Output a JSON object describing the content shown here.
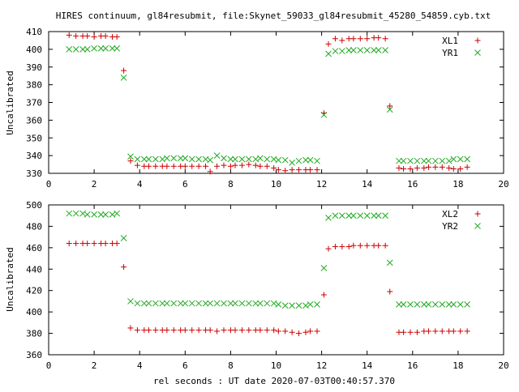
{
  "title": "HIRES continuum, gl84resubmit, file:Skynet_59033_gl84resubmit_45280_54859.cyb.txt",
  "xlabel": "rel seconds : UT date 2020-07-03T00:40:57.370",
  "colors": {
    "plus_series": "#cc0000",
    "cross_series": "#22aa22"
  },
  "chart_data": [
    {
      "type": "scatter",
      "title": "",
      "xlabel": "",
      "ylabel": "Uncalibrated",
      "xlim": [
        0,
        20
      ],
      "ylim": [
        330,
        410
      ],
      "xticks": [
        0,
        2,
        4,
        6,
        8,
        10,
        12,
        14,
        16,
        18,
        20
      ],
      "yticks": [
        330,
        340,
        350,
        360,
        370,
        380,
        390,
        400,
        410
      ],
      "grid": false,
      "legend": "top-right",
      "series": [
        {
          "name": "XL1",
          "marker": "plus",
          "color": "#cc0000",
          "x": [
            0.9,
            1.2,
            1.5,
            1.7,
            2.0,
            2.3,
            2.5,
            2.8,
            3.0,
            3.3,
            3.6,
            3.9,
            4.2,
            4.4,
            4.7,
            5.0,
            5.2,
            5.5,
            5.8,
            6.0,
            6.3,
            6.6,
            6.9,
            7.1,
            7.4,
            7.7,
            8.0,
            8.2,
            8.5,
            8.8,
            9.1,
            9.3,
            9.6,
            9.9,
            10.1,
            10.4,
            10.7,
            11.0,
            11.3,
            11.5,
            11.8,
            12.1,
            12.3,
            12.6,
            12.9,
            13.2,
            13.4,
            13.7,
            14.0,
            14.3,
            14.5,
            14.8,
            15.0,
            15.4,
            15.6,
            15.9,
            16.2,
            16.5,
            16.7,
            17.0,
            17.3,
            17.6,
            17.8,
            18.1,
            18.4
          ],
          "y": [
            408,
            407.5,
            407.5,
            407.5,
            407,
            407.5,
            407.5,
            407,
            407,
            388,
            337,
            334.5,
            334,
            334,
            334,
            334,
            334,
            334,
            334,
            334,
            334,
            334,
            334,
            331,
            334,
            334.5,
            334,
            334.5,
            334.5,
            335,
            334.5,
            334,
            334,
            333,
            332,
            331.5,
            332,
            332,
            332,
            332,
            332,
            364,
            403,
            406,
            405,
            406,
            406,
            406,
            406,
            406.5,
            406.5,
            406,
            368,
            333,
            332.5,
            332.5,
            333,
            333,
            333.5,
            333.5,
            333.5,
            333,
            332.5,
            332.5,
            333.5
          ]
        },
        {
          "name": "YR1",
          "marker": "cross",
          "color": "#22aa22",
          "x": [
            0.9,
            1.2,
            1.5,
            1.7,
            2.0,
            2.3,
            2.5,
            2.8,
            3.0,
            3.3,
            3.6,
            3.9,
            4.2,
            4.4,
            4.7,
            5.0,
            5.2,
            5.5,
            5.8,
            6.0,
            6.3,
            6.6,
            6.9,
            7.1,
            7.4,
            7.7,
            8.0,
            8.2,
            8.5,
            8.8,
            9.1,
            9.3,
            9.6,
            9.9,
            10.1,
            10.4,
            10.7,
            11.0,
            11.3,
            11.5,
            11.8,
            12.1,
            12.3,
            12.6,
            12.9,
            13.2,
            13.4,
            13.7,
            14.0,
            14.3,
            14.5,
            14.8,
            15.0,
            15.4,
            15.6,
            15.9,
            16.2,
            16.5,
            16.7,
            17.0,
            17.3,
            17.6,
            17.8,
            18.1,
            18.4
          ],
          "y": [
            400,
            400,
            400,
            400,
            400.5,
            400.5,
            400.5,
            400.5,
            400.5,
            384,
            339.5,
            338,
            338,
            338,
            338,
            338,
            338.5,
            338.5,
            338.5,
            338.5,
            338,
            338,
            338,
            337.5,
            340,
            338.5,
            338,
            338,
            338,
            338,
            338,
            338.5,
            338,
            338,
            337.5,
            337.5,
            336,
            337,
            337.5,
            337.5,
            337,
            363,
            397.5,
            399,
            399,
            399.5,
            399.5,
            399.5,
            399.5,
            399.5,
            399.5,
            399.5,
            366,
            337,
            337,
            337,
            337,
            337,
            337,
            337,
            337,
            337,
            338,
            338,
            338
          ]
        }
      ]
    },
    {
      "type": "scatter",
      "title": "",
      "xlabel": "rel seconds : UT date 2020-07-03T00:40:57.370",
      "ylabel": "Uncalibrated",
      "xlim": [
        0,
        20
      ],
      "ylim": [
        360,
        500
      ],
      "xticks": [
        0,
        2,
        4,
        6,
        8,
        10,
        12,
        14,
        16,
        18,
        20
      ],
      "yticks": [
        360,
        380,
        400,
        420,
        440,
        460,
        480,
        500
      ],
      "grid": false,
      "legend": "top-right",
      "series": [
        {
          "name": "XL2",
          "marker": "plus",
          "color": "#cc0000",
          "x": [
            0.9,
            1.2,
            1.5,
            1.7,
            2.0,
            2.3,
            2.5,
            2.8,
            3.0,
            3.3,
            3.6,
            3.9,
            4.2,
            4.4,
            4.7,
            5.0,
            5.2,
            5.5,
            5.8,
            6.0,
            6.3,
            6.6,
            6.9,
            7.1,
            7.4,
            7.7,
            8.0,
            8.2,
            8.5,
            8.8,
            9.1,
            9.3,
            9.6,
            9.9,
            10.1,
            10.4,
            10.7,
            11.0,
            11.3,
            11.5,
            11.8,
            12.1,
            12.3,
            12.6,
            12.9,
            13.2,
            13.4,
            13.7,
            14.0,
            14.3,
            14.5,
            14.8,
            15.0,
            15.4,
            15.6,
            15.9,
            16.2,
            16.5,
            16.7,
            17.0,
            17.3,
            17.6,
            17.8,
            18.1,
            18.4
          ],
          "y": [
            464,
            464,
            464,
            464,
            464,
            464,
            464,
            464,
            464,
            442,
            385,
            383,
            383,
            383,
            383,
            383,
            383,
            383,
            383,
            383,
            383,
            383,
            383,
            383,
            382,
            383,
            383,
            383,
            383,
            383,
            383,
            383,
            383,
            383,
            382,
            382,
            381,
            380,
            381,
            382,
            382,
            416,
            459,
            461,
            461,
            461,
            462,
            462,
            462,
            462,
            462,
            462,
            419,
            381,
            381,
            381,
            381,
            382,
            382,
            382,
            382,
            382,
            382,
            382,
            382
          ]
        },
        {
          "name": "YR2",
          "marker": "cross",
          "color": "#22aa22",
          "x": [
            0.9,
            1.2,
            1.5,
            1.7,
            2.0,
            2.3,
            2.5,
            2.8,
            3.0,
            3.3,
            3.6,
            3.9,
            4.2,
            4.4,
            4.7,
            5.0,
            5.2,
            5.5,
            5.8,
            6.0,
            6.3,
            6.6,
            6.9,
            7.1,
            7.4,
            7.7,
            8.0,
            8.2,
            8.5,
            8.8,
            9.1,
            9.3,
            9.6,
            9.9,
            10.1,
            10.4,
            10.7,
            11.0,
            11.3,
            11.5,
            11.8,
            12.1,
            12.3,
            12.6,
            12.9,
            13.2,
            13.4,
            13.7,
            14.0,
            14.3,
            14.5,
            14.8,
            15.0,
            15.4,
            15.6,
            15.9,
            16.2,
            16.5,
            16.7,
            17.0,
            17.3,
            17.6,
            17.8,
            18.1,
            18.4
          ],
          "y": [
            492,
            492,
            492,
            491,
            491,
            491,
            491,
            491,
            492,
            469,
            410,
            408,
            408,
            408,
            408,
            408,
            408,
            408,
            408,
            408,
            408,
            408,
            408,
            408,
            408,
            408,
            408,
            408,
            408,
            408,
            408,
            408,
            408,
            408,
            407,
            406,
            406,
            406,
            406,
            407,
            407,
            441,
            488,
            490,
            490,
            490,
            490,
            490,
            490,
            490,
            490,
            490,
            446,
            407,
            407,
            407,
            407,
            407,
            407,
            407,
            407,
            407,
            407,
            407,
            407
          ]
        }
      ]
    }
  ]
}
